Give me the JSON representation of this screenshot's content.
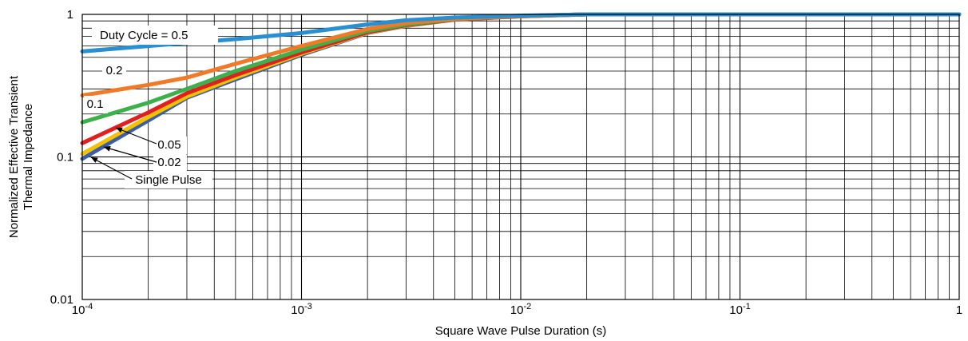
{
  "chart_data": {
    "type": "line",
    "xscale": "log",
    "yscale": "log",
    "xlim": [
      0.0001,
      1
    ],
    "ylim": [
      0.01,
      1
    ],
    "grid": true,
    "xlabel": "Square Wave Pulse Duration (s)",
    "ylabel": [
      "Normalized Effective Transient",
      "Thermal Impedance"
    ],
    "x_ticks": [
      {
        "value": 0.0001,
        "base": "10",
        "exp": "-4"
      },
      {
        "value": 0.001,
        "base": "10",
        "exp": "-3"
      },
      {
        "value": 0.01,
        "base": "10",
        "exp": "-2"
      },
      {
        "value": 0.1,
        "base": "10",
        "exp": "-1"
      },
      {
        "value": 1,
        "label": "1"
      }
    ],
    "y_ticks": [
      {
        "value": 1,
        "label": "1"
      },
      {
        "value": 0.1,
        "label": "0.1"
      },
      {
        "value": 0.01,
        "label": "0.01"
      }
    ],
    "series": [
      {
        "name": "Single Pulse",
        "color": "#3a5fa8",
        "x": [
          0.0001,
          0.0002,
          0.0003,
          0.0005,
          0.001,
          0.002,
          0.003,
          0.005,
          0.01,
          0.02,
          0.03,
          0.1,
          1
        ],
        "y": [
          0.097,
          0.18,
          0.26,
          0.35,
          0.52,
          0.74,
          0.83,
          0.92,
          0.97,
          1.0,
          1.0,
          1.0,
          1.0
        ]
      },
      {
        "name": "0.02",
        "color": "#f2c200",
        "x": [
          0.0001,
          0.0002,
          0.0003,
          0.0005,
          0.001,
          0.002,
          0.003,
          0.005,
          0.01,
          0.02,
          0.03,
          0.1,
          1
        ],
        "y": [
          0.105,
          0.19,
          0.265,
          0.36,
          0.53,
          0.745,
          0.835,
          0.92,
          0.97,
          1.0,
          1.0,
          1.0,
          1.0
        ]
      },
      {
        "name": "0.05",
        "color": "#e02020",
        "x": [
          0.0001,
          0.0002,
          0.0003,
          0.0005,
          0.001,
          0.002,
          0.003,
          0.005,
          0.01,
          0.02,
          0.03,
          0.1,
          1
        ],
        "y": [
          0.125,
          0.205,
          0.28,
          0.375,
          0.54,
          0.75,
          0.84,
          0.92,
          0.97,
          1.0,
          1.0,
          1.0,
          1.0
        ]
      },
      {
        "name": "0.1",
        "color": "#3cb04a",
        "x": [
          0.0001,
          0.0002,
          0.0003,
          0.0005,
          0.001,
          0.002,
          0.003,
          0.005,
          0.01,
          0.02,
          0.03,
          0.1,
          1
        ],
        "y": [
          0.175,
          0.24,
          0.3,
          0.4,
          0.565,
          0.765,
          0.85,
          0.925,
          0.975,
          1.0,
          1.0,
          1.0,
          1.0
        ]
      },
      {
        "name": "0.2",
        "color": "#f07a28",
        "x": [
          0.0001,
          0.0002,
          0.0003,
          0.0005,
          0.001,
          0.002,
          0.003,
          0.005,
          0.01,
          0.02,
          0.03,
          0.1,
          1
        ],
        "y": [
          0.27,
          0.32,
          0.36,
          0.45,
          0.6,
          0.79,
          0.87,
          0.93,
          0.975,
          1.0,
          1.0,
          1.0,
          1.0
        ]
      },
      {
        "name": "Duty Cycle = 0.5",
        "color": "#2a8fd0",
        "x": [
          0.0001,
          0.0002,
          0.0003,
          0.0005,
          0.001,
          0.002,
          0.003,
          0.005,
          0.01,
          0.02,
          0.03,
          0.1,
          1
        ],
        "y": [
          0.55,
          0.6,
          0.63,
          0.67,
          0.74,
          0.85,
          0.91,
          0.95,
          0.98,
          1.0,
          1.0,
          1.0,
          1.0
        ]
      }
    ],
    "annotations": [
      {
        "text": "Duty Cycle = 0.5",
        "series": "Duty Cycle = 0.5"
      },
      {
        "text": "0.2",
        "series": "0.2"
      },
      {
        "text": "0.1",
        "series": "0.1"
      },
      {
        "text": "0.05",
        "series": "0.05"
      },
      {
        "text": "0.02",
        "series": "0.02"
      },
      {
        "text": "Single Pulse",
        "series": "Single Pulse"
      }
    ]
  }
}
